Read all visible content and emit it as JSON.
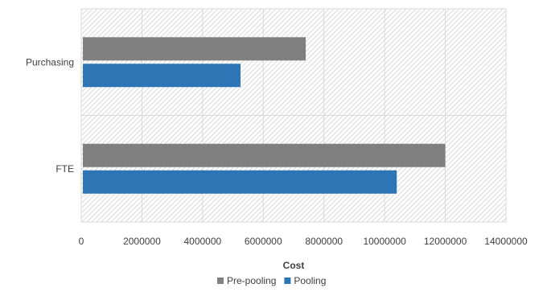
{
  "chart_data": {
    "type": "bar",
    "orientation": "horizontal",
    "categories": [
      "Purchasing",
      "FTE"
    ],
    "series": [
      {
        "name": "Pre-pooling",
        "values": [
          7400000,
          12000000
        ],
        "color": "#808080"
      },
      {
        "name": "Pooling",
        "values": [
          5250000,
          10400000
        ],
        "color": "#2E75B6"
      }
    ],
    "xlabel": "Cost",
    "ylabel": "",
    "xlim": [
      0,
      14000000
    ],
    "x_ticks": [
      "0",
      "2000000",
      "4000000",
      "6000000",
      "8000000",
      "10000000",
      "12000000",
      "14000000"
    ],
    "grid": true,
    "legend_position": "bottom"
  }
}
